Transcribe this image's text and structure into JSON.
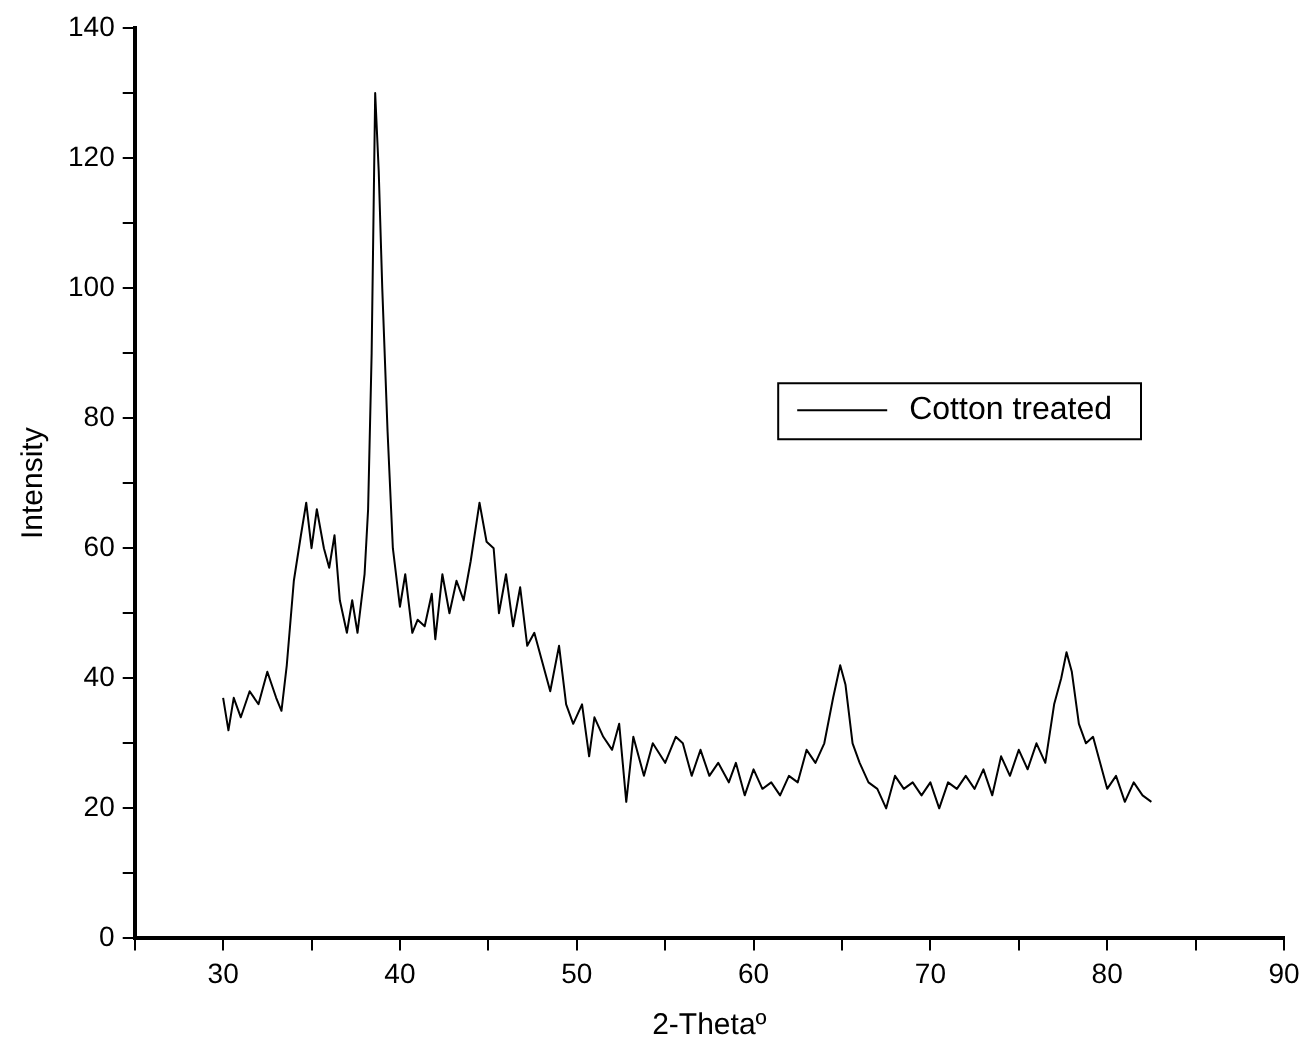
{
  "chart_data": {
    "type": "line",
    "xlabel": "2-Thetaº",
    "ylabel": "Intensity",
    "xlim": [
      25,
      90
    ],
    "ylim": [
      0,
      140
    ],
    "xticks": [
      {
        "value": 25,
        "label": null
      },
      30,
      {
        "value": 35,
        "label": null
      },
      40,
      {
        "value": 45,
        "label": null
      },
      50,
      {
        "value": 55,
        "label": null
      },
      60,
      {
        "value": 65,
        "label": null
      },
      70,
      {
        "value": 75,
        "label": null
      },
      80,
      {
        "value": 85,
        "label": null
      },
      90
    ],
    "yticks": [
      0,
      {
        "value": 10,
        "label": null
      },
      20,
      {
        "value": 30,
        "label": null
      },
      40,
      {
        "value": 50,
        "label": null
      },
      60,
      {
        "value": 70,
        "label": null
      },
      80,
      {
        "value": 90,
        "label": null
      },
      100,
      {
        "value": 110,
        "label": null
      },
      120,
      {
        "value": 130,
        "label": null
      },
      140
    ],
    "grid": false,
    "legend": "right",
    "marker": "none",
    "line_style": "solid",
    "series": [
      {
        "name": "Cotton treated",
        "color": "#000000",
        "x": [
          30,
          30.3,
          30.6,
          31,
          31.5,
          32,
          32.5,
          33,
          33.3,
          33.6,
          34,
          34.4,
          34.7,
          35,
          35.3,
          35.7,
          36,
          36.3,
          36.6,
          37,
          37.3,
          37.6,
          38,
          38.2,
          38.4,
          38.6,
          38.8,
          39,
          39.3,
          39.6,
          40,
          40.3,
          40.7,
          41,
          41.4,
          41.8,
          42,
          42.4,
          42.8,
          43.2,
          43.6,
          44,
          44.5,
          44.9,
          45.3,
          45.6,
          46,
          46.4,
          46.8,
          47.2,
          47.6,
          48,
          48.5,
          49,
          49.4,
          49.8,
          50.3,
          50.7,
          51,
          51.5,
          52,
          52.4,
          52.8,
          53.2,
          53.8,
          54.3,
          55,
          55.6,
          56,
          56.5,
          57,
          57.5,
          58,
          58.6,
          59,
          59.5,
          60,
          60.5,
          61,
          61.5,
          62,
          62.5,
          63,
          63.5,
          64,
          64.5,
          64.9,
          65.2,
          65.6,
          66,
          66.5,
          67,
          67.5,
          68,
          68.5,
          69,
          69.5,
          70,
          70.5,
          71,
          71.5,
          72,
          72.5,
          73,
          73.5,
          74,
          74.5,
          75,
          75.5,
          76,
          76.5,
          77,
          77.4,
          77.7,
          78,
          78.4,
          78.8,
          79.2,
          79.6,
          80,
          80.5,
          81,
          81.5,
          82,
          82.5
        ],
        "values": [
          37,
          32,
          37,
          34,
          38,
          36,
          41,
          37,
          35,
          42,
          55,
          62,
          67,
          60,
          66,
          60,
          57,
          62,
          52,
          47,
          52,
          47,
          56,
          66,
          90,
          130,
          118,
          100,
          78,
          60,
          51,
          56,
          47,
          49,
          48,
          53,
          46,
          56,
          50,
          55,
          52,
          58,
          67,
          61,
          60,
          50,
          56,
          48,
          54,
          45,
          47,
          43,
          38,
          45,
          36,
          33,
          36,
          28,
          34,
          31,
          29,
          33,
          21,
          31,
          25,
          30,
          27,
          31,
          30,
          25,
          29,
          25,
          27,
          24,
          27,
          22,
          26,
          23,
          24,
          22,
          25,
          24,
          29,
          27,
          30,
          37,
          42,
          39,
          30,
          27,
          24,
          23,
          20,
          25,
          23,
          24,
          22,
          24,
          20,
          24,
          23,
          25,
          23,
          26,
          22,
          28,
          25,
          29,
          26,
          30,
          27,
          36,
          40,
          44,
          41,
          33,
          30,
          31,
          27,
          23,
          25,
          21,
          24,
          22,
          21
        ]
      }
    ]
  }
}
